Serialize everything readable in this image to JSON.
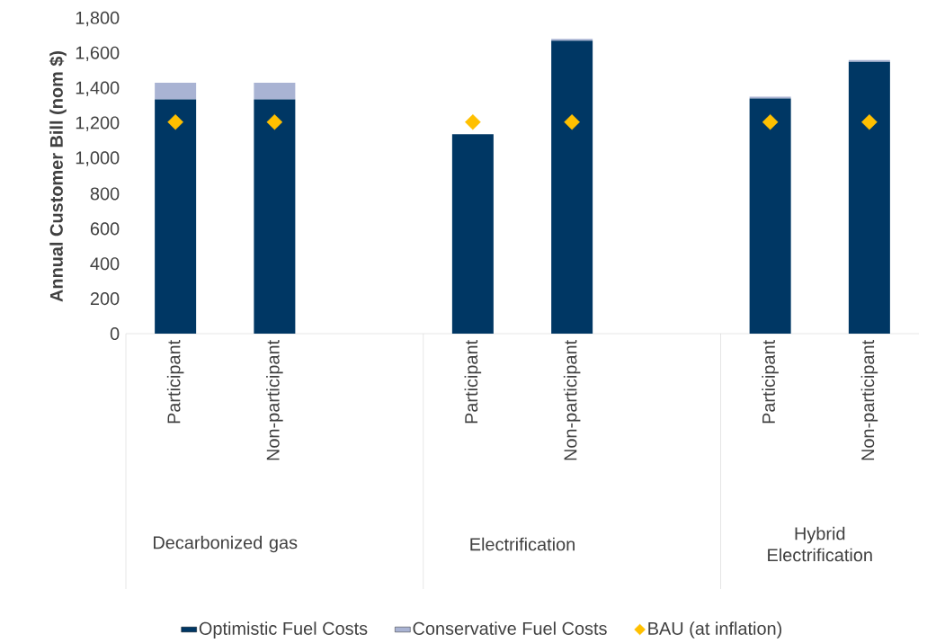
{
  "chart_data": {
    "type": "bar",
    "stacked": true,
    "categories": [
      "Participant",
      "Non-participant",
      null,
      "Participant",
      "Non-participant",
      null,
      "Participant",
      "Non-participant"
    ],
    "series": [
      {
        "name": "Optimistic Fuel Costs",
        "color": "#003764",
        "values": [
          1340,
          1340,
          null,
          1140,
          1675,
          null,
          1345,
          1555
        ]
      },
      {
        "name": "Conservative Fuel Costs",
        "color": "#a9b3d3",
        "values": [
          95,
          95,
          null,
          0,
          10,
          null,
          10,
          10
        ]
      },
      {
        "name": "BAU (at inflation)",
        "type": "scatter",
        "marker": "diamond",
        "color": "#ffc000",
        "values": [
          1210,
          1210,
          null,
          1210,
          1210,
          null,
          1210,
          1210
        ]
      }
    ],
    "ylim": [
      0,
      1800
    ],
    "yticks": [
      0,
      200,
      400,
      600,
      800,
      {
        "value": 1000,
        "label": "1,000"
      },
      {
        "value": 1200,
        "label": "1,200"
      },
      {
        "value": 1400,
        "label": "1,400"
      },
      {
        "value": 1600,
        "label": "1,600"
      },
      {
        "value": 1800,
        "label": "1,800"
      }
    ],
    "ylabel": "Annual Customer Bill (nom $)",
    "annotations": [
      "Decarbonized gas",
      "Electrification",
      "Hybrid Electrification"
    ],
    "legend": "bottom"
  }
}
